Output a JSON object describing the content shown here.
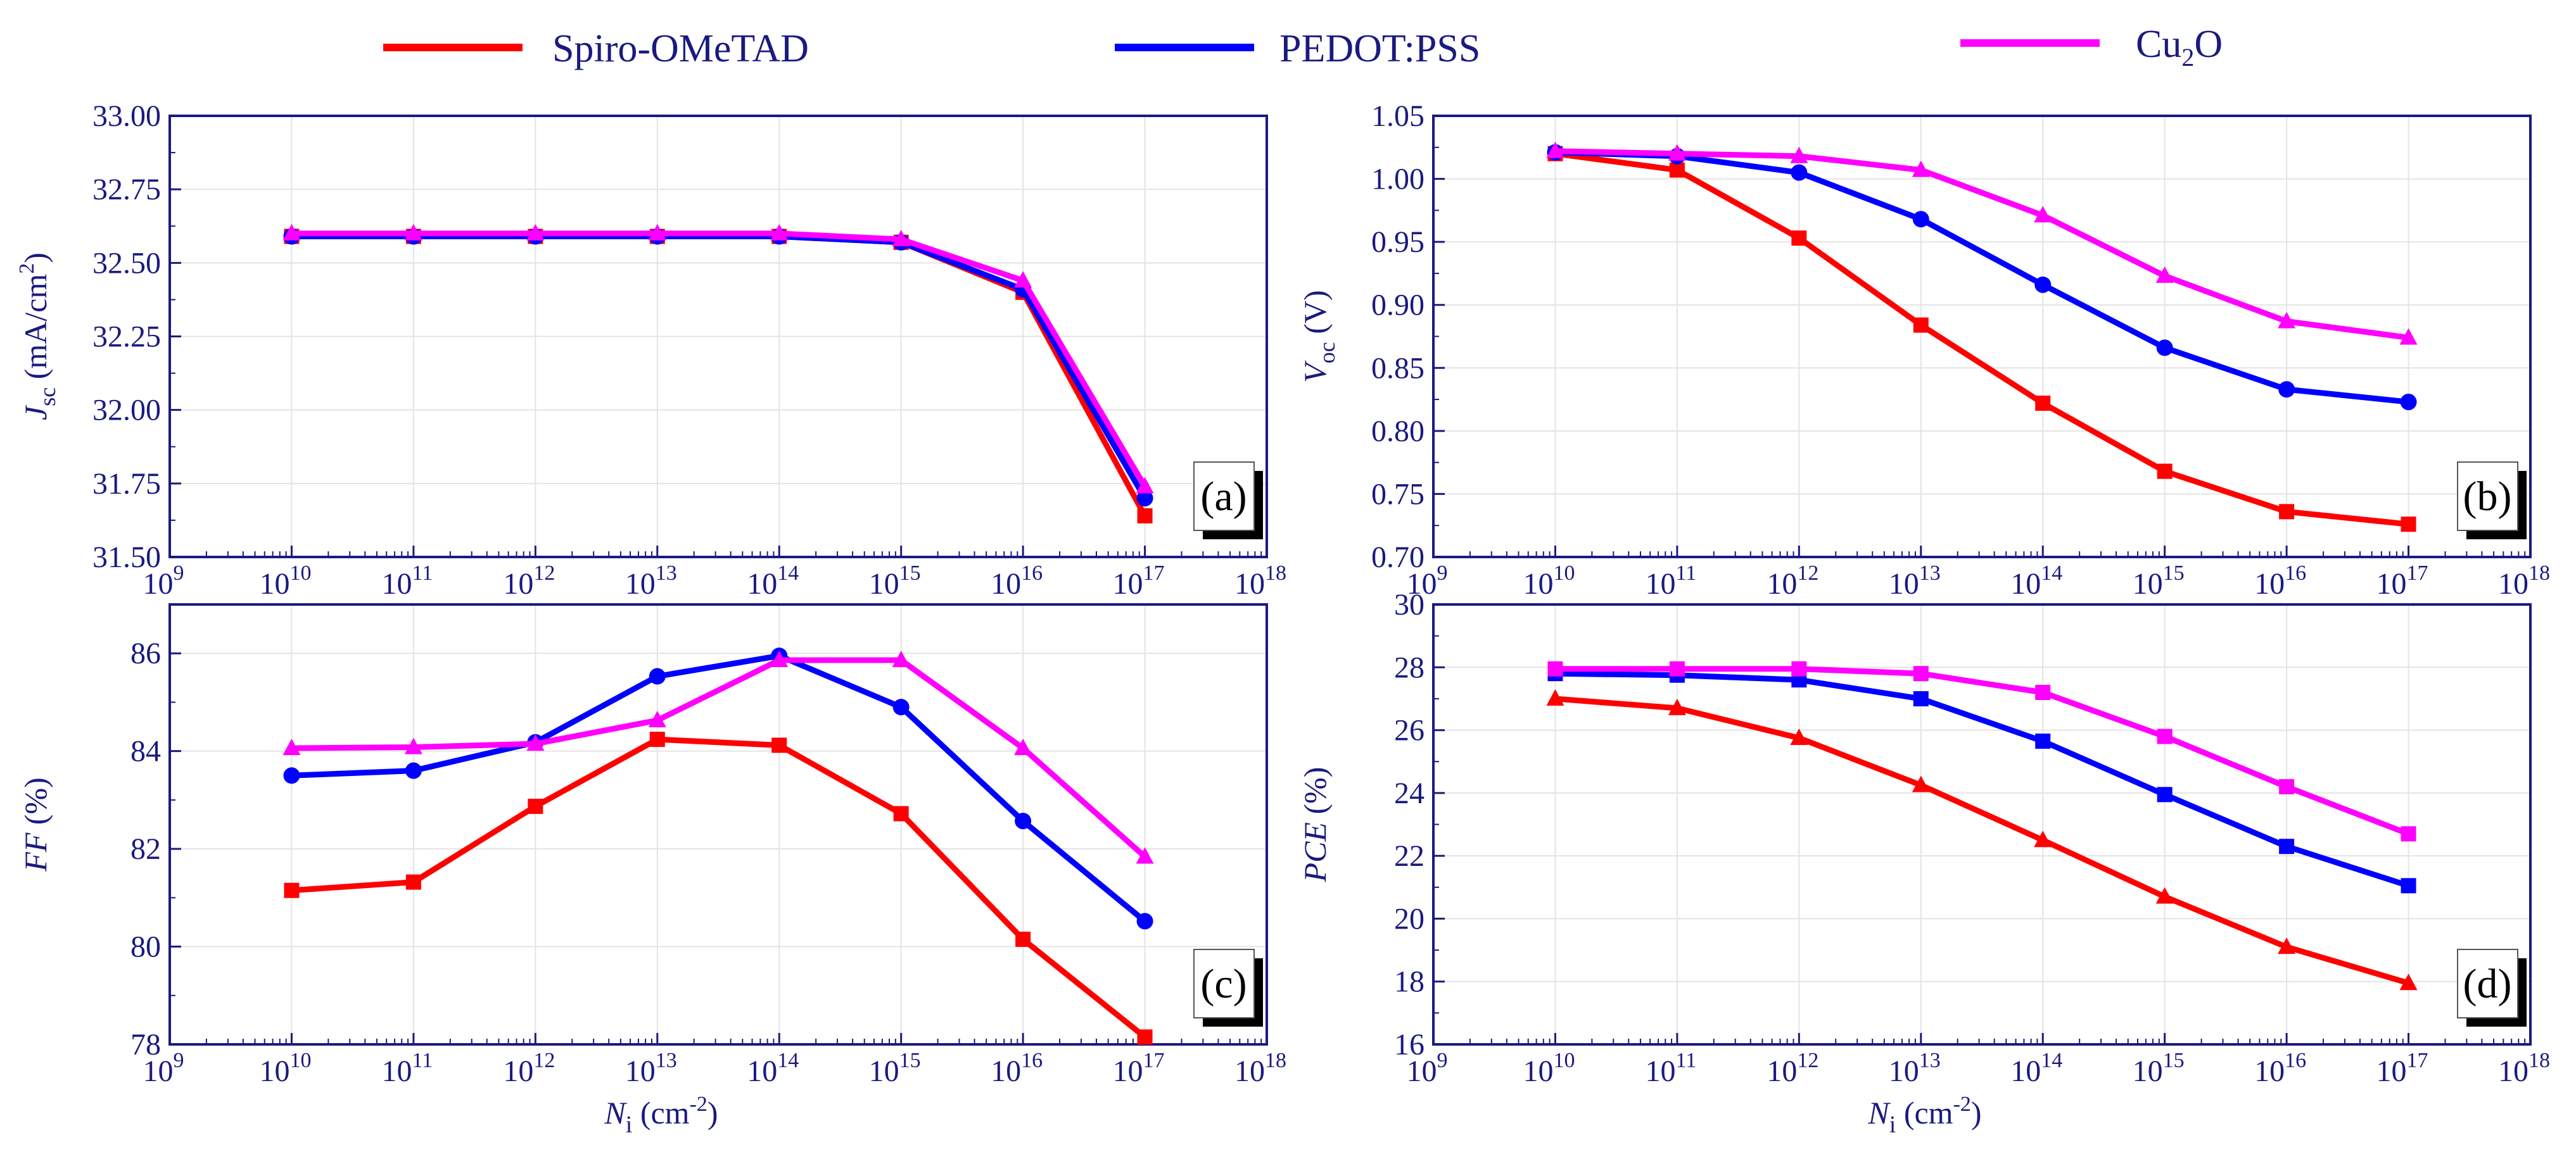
{
  "colors": {
    "spiro": "#ff0000",
    "pedot": "#0000ff",
    "cu2o": "#ff00ff",
    "axis": "#1a1a80",
    "grid": "#e4e4e4"
  },
  "legend": [
    {
      "key": "spiro",
      "label": "Spiro-OMeTAD"
    },
    {
      "key": "pedot",
      "label": "PEDOT:PSS"
    },
    {
      "key": "cu2o",
      "label_main": "Cu",
      "label_sub": "2",
      "label_rest": "O"
    }
  ],
  "shared_x": {
    "label_main": "N",
    "label_sub": "i",
    "label_unit": " (cm",
    "label_exp": "-2",
    "label_close": ")",
    "ticks": [
      {
        "base": "10",
        "exp": "9"
      },
      {
        "base": "10",
        "exp": "10"
      },
      {
        "base": "10",
        "exp": "11"
      },
      {
        "base": "10",
        "exp": "12"
      },
      {
        "base": "10",
        "exp": "13"
      },
      {
        "base": "10",
        "exp": "14"
      },
      {
        "base": "10",
        "exp": "15"
      },
      {
        "base": "10",
        "exp": "16"
      },
      {
        "base": "10",
        "exp": "17"
      },
      {
        "base": "10",
        "exp": "18"
      }
    ]
  },
  "chart_data": [
    {
      "type": "line",
      "panel": "(a)",
      "ylabel": {
        "main": "J",
        "sub": "sc",
        "unit": " (mA/cm",
        "exp": "2",
        "close": ")"
      },
      "x_log10": [
        10,
        11,
        12,
        13,
        14,
        15,
        16,
        17
      ],
      "xlim_log10": [
        9,
        18
      ],
      "ylim": [
        31.5,
        33.0
      ],
      "yticks": [
        "31.50",
        "31.75",
        "32.00",
        "32.25",
        "32.50",
        "32.75",
        "33.00"
      ],
      "series": [
        {
          "key": "spiro",
          "name": "Spiro-OMeTAD",
          "marker": "square",
          "values": [
            32.59,
            32.59,
            32.59,
            32.59,
            32.59,
            32.57,
            32.4,
            31.64
          ]
        },
        {
          "key": "pedot",
          "name": "PEDOT:PSS",
          "marker": "circle",
          "values": [
            32.59,
            32.59,
            32.59,
            32.59,
            32.59,
            32.57,
            32.41,
            31.7
          ]
        },
        {
          "key": "cu2o",
          "name": "Cu2O",
          "marker": "triangle",
          "values": [
            32.6,
            32.6,
            32.6,
            32.6,
            32.6,
            32.58,
            32.44,
            31.74
          ]
        }
      ]
    },
    {
      "type": "line",
      "panel": "(b)",
      "ylabel": {
        "main": "V",
        "sub": "oc",
        "unit": " (V)",
        "exp": "",
        "close": ""
      },
      "x_log10": [
        10,
        11,
        12,
        13,
        14,
        15,
        16,
        17
      ],
      "xlim_log10": [
        9,
        18
      ],
      "ylim": [
        0.7,
        1.05
      ],
      "yticks": [
        "0.70",
        "0.75",
        "0.80",
        "0.85",
        "0.90",
        "0.95",
        "1.00",
        "1.05"
      ],
      "series": [
        {
          "key": "spiro",
          "name": "Spiro-OMeTAD",
          "marker": "square",
          "values": [
            1.02,
            1.007,
            0.953,
            0.884,
            0.822,
            0.768,
            0.736,
            0.726
          ]
        },
        {
          "key": "pedot",
          "name": "PEDOT:PSS",
          "marker": "circle",
          "values": [
            1.021,
            1.018,
            1.005,
            0.968,
            0.916,
            0.866,
            0.833,
            0.823
          ]
        },
        {
          "key": "cu2o",
          "name": "Cu2O",
          "marker": "triangle",
          "values": [
            1.022,
            1.02,
            1.018,
            1.007,
            0.971,
            0.923,
            0.887,
            0.874
          ]
        }
      ]
    },
    {
      "type": "line",
      "panel": "(c)",
      "ylabel": {
        "main": "FF",
        "sub": "",
        "unit": " (%)",
        "exp": "",
        "close": ""
      },
      "x_log10": [
        10,
        11,
        12,
        13,
        14,
        15,
        16,
        17
      ],
      "xlim_log10": [
        9,
        18
      ],
      "ylim": [
        78,
        87
      ],
      "yticks": [
        "78",
        "80",
        "82",
        "84",
        "86"
      ],
      "series": [
        {
          "key": "spiro",
          "name": "Spiro-OMeTAD",
          "marker": "square",
          "values": [
            81.15,
            81.32,
            82.87,
            84.24,
            84.12,
            82.72,
            80.15,
            78.15
          ]
        },
        {
          "key": "pedot",
          "name": "PEDOT:PSS",
          "marker": "circle",
          "values": [
            83.5,
            83.6,
            84.18,
            85.53,
            85.95,
            84.9,
            82.57,
            80.52
          ]
        },
        {
          "key": "cu2o",
          "name": "Cu2O",
          "marker": "triangle",
          "values": [
            84.06,
            84.08,
            84.15,
            84.63,
            85.86,
            85.86,
            84.06,
            81.84
          ]
        }
      ]
    },
    {
      "type": "line",
      "panel": "(d)",
      "ylabel": {
        "main": "PCE",
        "sub": "",
        "unit": " (%)",
        "exp": "",
        "close": ""
      },
      "x_log10": [
        10,
        11,
        12,
        13,
        14,
        15,
        16,
        17
      ],
      "xlim_log10": [
        9,
        18
      ],
      "ylim": [
        16,
        30
      ],
      "yticks": [
        "16",
        "18",
        "20",
        "22",
        "24",
        "26",
        "28",
        "30"
      ],
      "series": [
        {
          "key": "spiro",
          "name": "Spiro-OMeTAD",
          "marker": "triangle",
          "values": [
            27.0,
            26.7,
            25.75,
            24.25,
            22.5,
            20.7,
            19.1,
            17.95
          ]
        },
        {
          "key": "pedot",
          "name": "PEDOT:PSS",
          "marker": "square",
          "values": [
            27.8,
            27.75,
            27.6,
            27.0,
            25.65,
            23.95,
            22.3,
            21.05
          ]
        },
        {
          "key": "cu2o",
          "name": "Cu2O",
          "marker": "square",
          "values": [
            27.95,
            27.95,
            27.95,
            27.8,
            27.2,
            25.8,
            24.2,
            22.7
          ]
        }
      ]
    }
  ]
}
